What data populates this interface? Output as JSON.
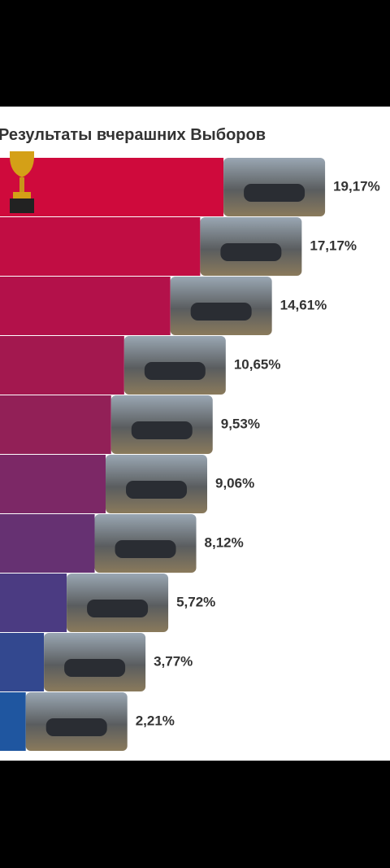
{
  "chart_data": {
    "type": "bar",
    "orientation": "horizontal",
    "title": "Результаты вчерашних Выборов",
    "values": [
      19.17,
      17.17,
      14.61,
      10.65,
      9.53,
      9.06,
      8.12,
      5.72,
      3.77,
      2.21
    ],
    "value_labels": [
      "19,17%",
      "17,17%",
      "14,61%",
      "10,65%",
      "9,53%",
      "9,06%",
      "8,12%",
      "5,72%",
      "3,77%",
      "2,21%"
    ],
    "colors": [
      "#cf0a3c",
      "#c10d43",
      "#b3114a",
      "#a3184f",
      "#922057",
      "#7c2866",
      "#663172",
      "#4b3b82",
      "#33488f",
      "#1f56a0"
    ]
  }
}
